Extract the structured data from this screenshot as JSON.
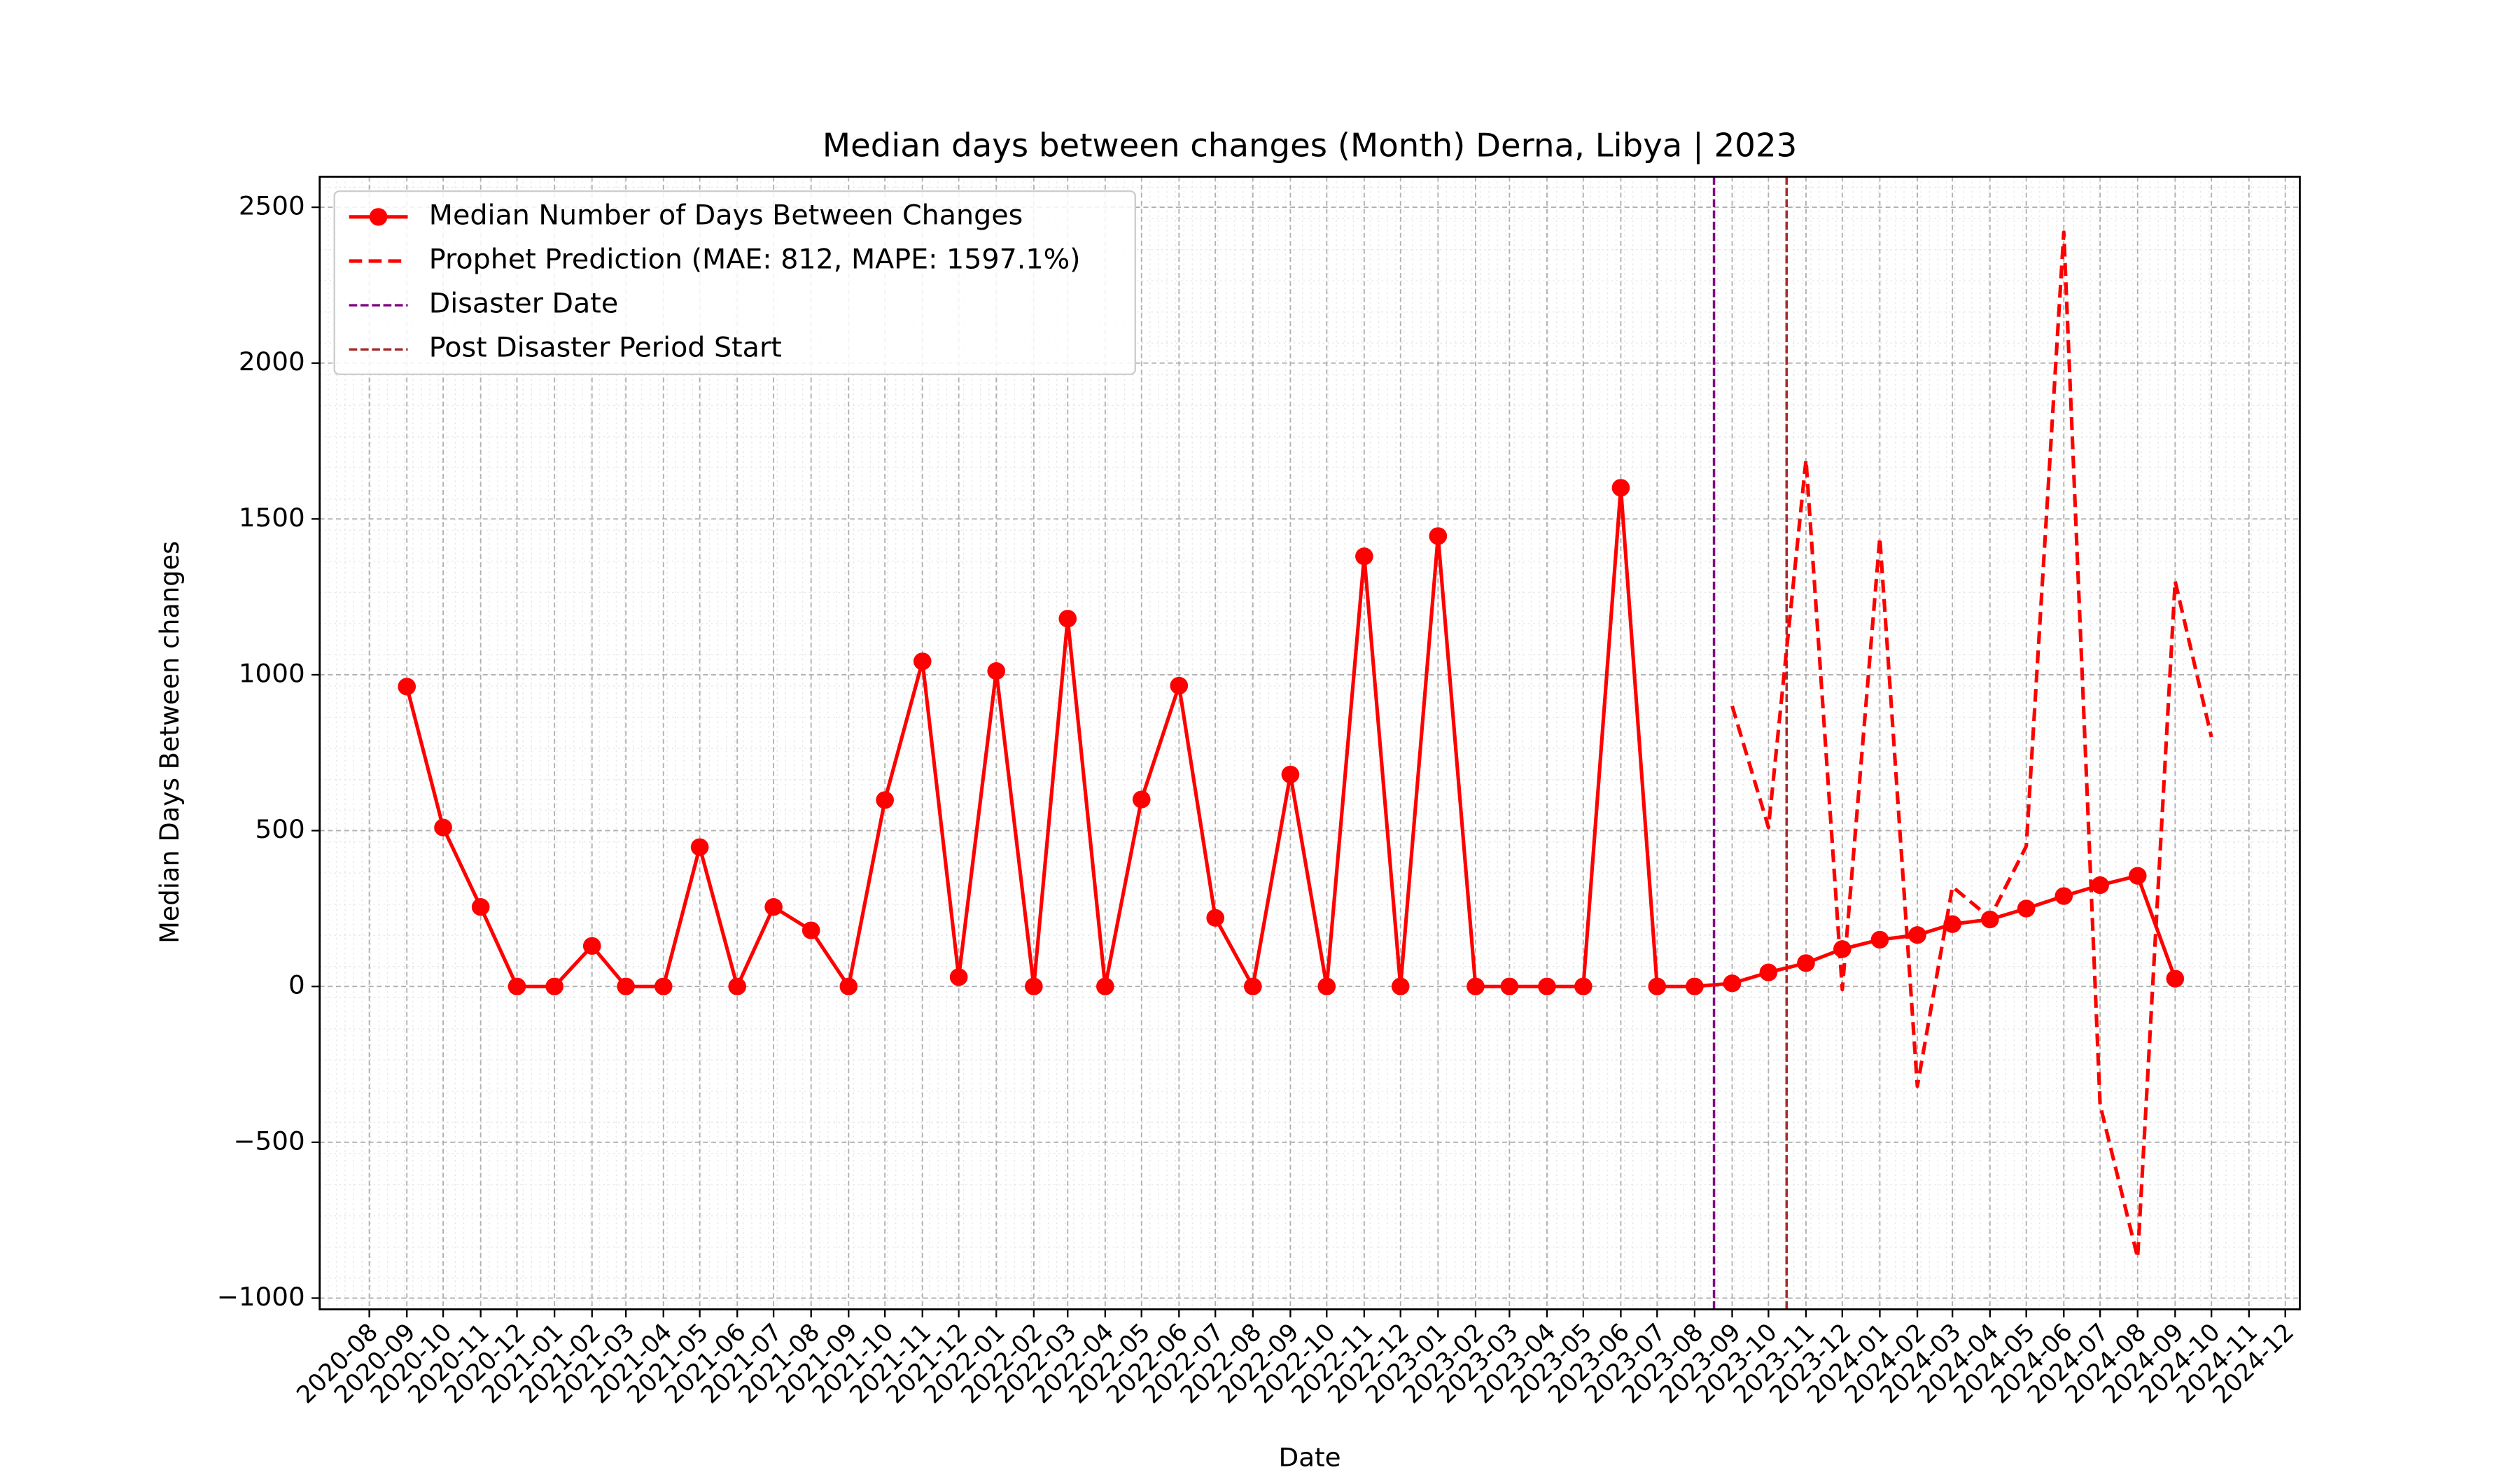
{
  "chart_data": {
    "type": "line",
    "title": "Median days between changes (Month) Derna, Libya | 2023",
    "x_label": "Date",
    "y_label": "Median Days Between changes",
    "x": [
      "2020-09",
      "2020-10",
      "2020-11",
      "2020-12",
      "2021-01",
      "2021-02",
      "2021-03",
      "2021-04",
      "2021-05",
      "2021-06",
      "2021-07",
      "2021-08",
      "2021-09",
      "2021-10",
      "2021-11",
      "2021-12",
      "2022-01",
      "2022-02",
      "2022-03",
      "2022-04",
      "2022-05",
      "2022-06",
      "2022-07",
      "2022-08",
      "2022-09",
      "2022-10",
      "2022-11",
      "2022-12",
      "2023-01",
      "2023-02",
      "2023-03",
      "2023-04",
      "2023-05",
      "2023-06",
      "2023-07",
      "2023-08",
      "2023-09",
      "2023-10",
      "2023-11",
      "2023-12",
      "2024-01",
      "2024-02",
      "2024-03",
      "2024-04",
      "2024-05",
      "2024-06",
      "2024-07",
      "2024-08",
      "2024-09",
      "2024-10"
    ],
    "series": [
      {
        "name": "Median Number of Days Between Changes",
        "color": "#ff0000",
        "style": "solid",
        "marker": true,
        "values": [
          962,
          510,
          255,
          0,
          0,
          130,
          0,
          0,
          447,
          0,
          255,
          180,
          0,
          598,
          1043,
          30,
          1012,
          0,
          1180,
          0,
          600,
          965,
          220,
          0,
          680,
          0,
          1380,
          0,
          1445,
          0,
          0,
          0,
          0,
          1600,
          0,
          0,
          10,
          45,
          75,
          120,
          150,
          165,
          200,
          215,
          250,
          290,
          325,
          355,
          25,
          null
        ]
      },
      {
        "name": "Prophet Prediction (MAE: 812, MAPE: 1597.1%)",
        "color": "#ff0000",
        "style": "dashed",
        "marker": false,
        "values": [
          null,
          null,
          null,
          null,
          null,
          null,
          null,
          null,
          null,
          null,
          null,
          null,
          null,
          null,
          null,
          null,
          null,
          null,
          null,
          null,
          null,
          null,
          null,
          null,
          null,
          null,
          null,
          null,
          null,
          null,
          null,
          null,
          null,
          null,
          null,
          null,
          900,
          510,
          1690,
          -10,
          1440,
          -320,
          320,
          220,
          450,
          2420,
          -380,
          -870,
          1300,
          800
        ]
      }
    ],
    "vlines": [
      {
        "name": "Disaster Date",
        "color": "#800080",
        "x": "2023-08-17"
      },
      {
        "name": "Post Disaster Period Start",
        "color": "#a52a2a",
        "x": "2023-10-16"
      }
    ],
    "xlim": [
      "2020-06-21",
      "2024-12-13"
    ],
    "xticks": [
      "2020-08",
      "2020-09",
      "2020-10",
      "2020-11",
      "2020-12",
      "2021-01",
      "2021-02",
      "2021-03",
      "2021-04",
      "2021-05",
      "2021-06",
      "2021-07",
      "2021-08",
      "2021-09",
      "2021-10",
      "2021-11",
      "2021-12",
      "2022-01",
      "2022-02",
      "2022-03",
      "2022-04",
      "2022-05",
      "2022-06",
      "2022-07",
      "2022-08",
      "2022-09",
      "2022-10",
      "2022-11",
      "2022-12",
      "2023-01",
      "2023-02",
      "2023-03",
      "2023-04",
      "2023-05",
      "2023-06",
      "2023-07",
      "2023-08",
      "2023-09",
      "2023-10",
      "2023-11",
      "2023-12",
      "2024-01",
      "2024-02",
      "2024-03",
      "2024-04",
      "2024-05",
      "2024-06",
      "2024-07",
      "2024-08",
      "2024-09",
      "2024-10",
      "2024-11",
      "2024-12"
    ],
    "ylim": [
      -1036,
      2598
    ],
    "yticks": [
      {
        "value": -1000,
        "label": "−1000"
      },
      {
        "value": -500,
        "label": "−500"
      },
      0,
      500,
      1000,
      1500,
      2000,
      2500
    ],
    "grid": true,
    "legend": "upper left"
  }
}
